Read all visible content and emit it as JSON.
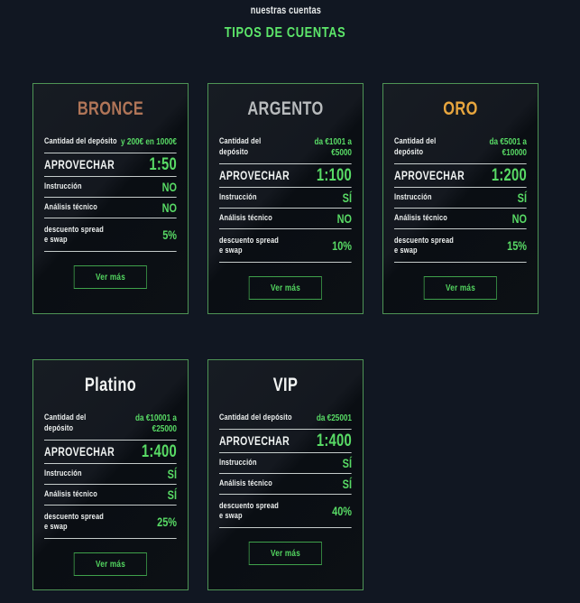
{
  "header": {
    "subtitle": "nuestras cuentas",
    "title": "TIPOS DE CUENTAS"
  },
  "row_labels": {
    "deposit": "Cantidad del depósito",
    "leverage": "APROVECHAR",
    "instruction": "Instrucción",
    "analysis": "Análisis técnico",
    "discount": "descuento spread e swap",
    "more_button": "Ver más"
  },
  "cards": [
    {
      "name": "BRONCE",
      "title_color": "#b07558",
      "deposit": "y 200€ en 1000€",
      "leverage": "1:50",
      "instruction": "NO",
      "analysis": "NO",
      "discount": "5%"
    },
    {
      "name": "ARGENTO",
      "title_color": "#b8bbbd",
      "deposit": "da €1001 a €5000",
      "leverage": "1:100",
      "instruction": "SÍ",
      "analysis": "NO",
      "discount": "10%"
    },
    {
      "name": "ORO",
      "title_color": "#e8a63e",
      "deposit": "da €5001 a €10000",
      "leverage": "1:200",
      "instruction": "SÍ",
      "analysis": "NO",
      "discount": "15%"
    },
    {
      "name": "Platino",
      "title_color": "#f2f4f3",
      "deposit": "da €10001 a €25000",
      "leverage": "1:400",
      "instruction": "SÍ",
      "analysis": "SÍ",
      "discount": "25%"
    },
    {
      "name": "VIP",
      "title_color": "#f2f4f3",
      "deposit": "da €25001",
      "leverage": "1:400",
      "instruction": "SÍ",
      "analysis": "SÍ",
      "discount": "40%"
    }
  ],
  "colors": {
    "background": "#111722",
    "card_background": "#0c1015",
    "card_border_green": "#4e9455",
    "accent_value_green": "#58da65",
    "title_green": "#5de76a",
    "separator_light": "#dee5e2",
    "bronze": "#b07558",
    "silver": "#b8bbbd",
    "gold": "#e8a63e"
  }
}
